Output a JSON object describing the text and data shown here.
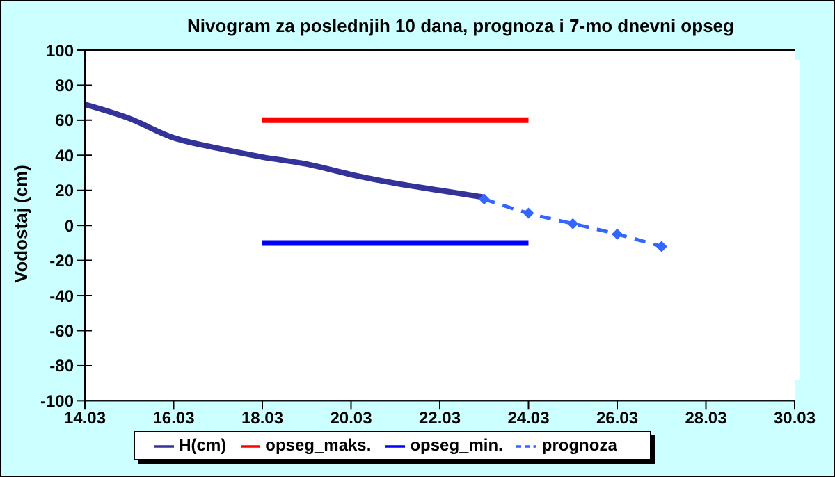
{
  "chart_data": {
    "type": "line",
    "title": "Nivogram za poslednjih 10 dana, prognoza i 7-mo dnevni opseg",
    "ylabel": "Vodostaj (cm)",
    "xlim": [
      "--03-14",
      "--03-30"
    ],
    "xticks": [
      {
        "value": "--03-14",
        "label": "14.03"
      },
      {
        "value": "--03-16",
        "label": "16.03"
      },
      {
        "value": "--03-18",
        "label": "18.03"
      },
      {
        "value": "--03-20",
        "label": "20.03"
      },
      {
        "value": "--03-22",
        "label": "22.03"
      },
      {
        "value": "--03-24",
        "label": "24.03"
      },
      {
        "value": "--03-26",
        "label": "26.03"
      },
      {
        "value": "--03-28",
        "label": "28.03"
      },
      {
        "value": "--03-30",
        "label": "30.03"
      }
    ],
    "ylim": [
      -100,
      100
    ],
    "yticks": [
      -100,
      -80,
      -60,
      -40,
      -20,
      0,
      20,
      40,
      60,
      80,
      100
    ],
    "grid": "y",
    "legend": "bottom",
    "series": [
      {
        "name": "H(cm)",
        "color": "#333399",
        "marker": "none",
        "line_style": "solid",
        "x": [
          "--03-14",
          "--03-15",
          "--03-16",
          "--03-17",
          "--03-18",
          "--03-19",
          "--03-20",
          "--03-21",
          "--03-22",
          "--03-23"
        ],
        "values": [
          69,
          61,
          50,
          44,
          39,
          35,
          29,
          24,
          20,
          16
        ]
      },
      {
        "name": "opseg_min.",
        "color": "#0000ff",
        "marker": "none",
        "line_style": "solid",
        "x": [
          "--03-18",
          "--03-24"
        ],
        "values": [
          -10,
          -10
        ]
      },
      {
        "name": "opseg_maks.",
        "color": "#ff0000",
        "marker": "none",
        "line_style": "solid",
        "x": [
          "--03-18",
          "--03-24"
        ],
        "values": [
          60,
          60
        ]
      },
      {
        "name": "prognoza",
        "color": "#3366ff",
        "marker": "diamond",
        "line_style": "dashed",
        "x": [
          "--03-23",
          "--03-24",
          "--03-25",
          "--03-26",
          "--03-27"
        ],
        "values": [
          15,
          7,
          1,
          -5,
          -12
        ]
      }
    ]
  }
}
